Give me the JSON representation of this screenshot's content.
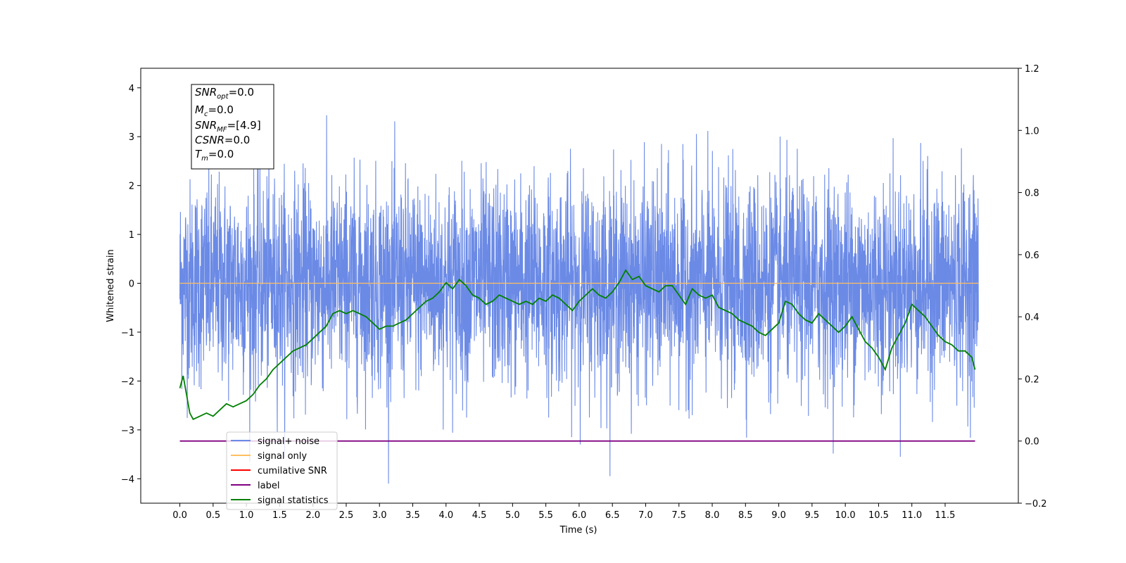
{
  "chart_data": {
    "type": "line",
    "xlabel": "Time (s)",
    "ylabel": "Whitened strain",
    "xlim": [
      -0.5875,
      12.6
    ],
    "ylim": [
      -4.5,
      4.4
    ],
    "y2lim": [
      -0.2,
      1.2
    ],
    "x_ticks": [
      0.0,
      0.5,
      1.0,
      1.5,
      2.0,
      2.5,
      3.0,
      3.5,
      4.0,
      4.5,
      5.0,
      5.5,
      6.0,
      6.5,
      7.0,
      7.5,
      8.0,
      8.5,
      9.0,
      9.5,
      10.0,
      10.5,
      11.0,
      11.5
    ],
    "x_tick_labels": [
      "0.0",
      "0.5",
      "1.0",
      "1.5",
      "2.0",
      "2.5",
      "3.0",
      "3.5",
      "4.0",
      "4.5",
      "5.0",
      "5.5",
      "6.0",
      "6.5",
      "7.0",
      "7.5",
      "8.0",
      "8.5",
      "9.0",
      "9.5",
      "10.0",
      "10.5",
      "11.0",
      "11.5"
    ],
    "y_ticks": [
      4,
      3,
      2,
      1,
      0,
      -1,
      -2,
      -3,
      -4
    ],
    "y_tick_labels": [
      "4",
      "3",
      "2",
      "1",
      "0",
      "−1",
      "−2",
      "−3",
      "−4"
    ],
    "y2_ticks": [
      1.2,
      1.0,
      0.8,
      0.6,
      0.4,
      0.2,
      0.0,
      -0.2
    ],
    "y2_tick_labels": [
      "1.2",
      "1.0",
      "0.8",
      "0.6",
      "0.4",
      "0.2",
      "0.0",
      "−0.2"
    ],
    "grid": false,
    "legend_position": "lower-left",
    "series": [
      {
        "name": "signal+ noise",
        "color": "#6b8ae6",
        "axis": "left",
        "x_range": [
          0.0,
          12.0
        ],
        "y_band": [
          -2.5,
          2.5
        ],
        "y_peak_range": [
          -4.1,
          4.0
        ]
      },
      {
        "name": "signal only",
        "color": "#ffbf60",
        "axis": "left",
        "x": [
          0.0,
          12.0
        ],
        "y": [
          0.0,
          0.0
        ]
      },
      {
        "name": "cumilative SNR",
        "color": "#ff0000",
        "axis": "right",
        "x": [],
        "y": []
      },
      {
        "name": "label",
        "color": "#800080",
        "axis": "right",
        "x": [
          0.0,
          11.95
        ],
        "y": [
          0.0,
          0.0
        ]
      },
      {
        "name": "signal statistics",
        "color": "#008000",
        "axis": "right",
        "x": [
          0.0,
          0.05,
          0.1,
          0.15,
          0.2,
          0.3,
          0.4,
          0.5,
          0.6,
          0.7,
          0.8,
          0.9,
          1.0,
          1.1,
          1.2,
          1.3,
          1.4,
          1.5,
          1.6,
          1.7,
          1.8,
          1.9,
          2.0,
          2.1,
          2.2,
          2.3,
          2.4,
          2.5,
          2.6,
          2.7,
          2.8,
          2.9,
          3.0,
          3.1,
          3.2,
          3.3,
          3.4,
          3.5,
          3.6,
          3.7,
          3.8,
          3.9,
          4.0,
          4.1,
          4.2,
          4.3,
          4.4,
          4.5,
          4.6,
          4.7,
          4.8,
          4.9,
          5.0,
          5.1,
          5.2,
          5.3,
          5.4,
          5.5,
          5.6,
          5.7,
          5.8,
          5.9,
          6.0,
          6.1,
          6.2,
          6.3,
          6.4,
          6.5,
          6.6,
          6.7,
          6.8,
          6.9,
          7.0,
          7.1,
          7.2,
          7.3,
          7.4,
          7.5,
          7.6,
          7.7,
          7.8,
          7.9,
          8.0,
          8.1,
          8.2,
          8.3,
          8.4,
          8.5,
          8.6,
          8.7,
          8.8,
          8.9,
          9.0,
          9.1,
          9.2,
          9.3,
          9.4,
          9.5,
          9.6,
          9.7,
          9.8,
          9.9,
          10.0,
          10.1,
          10.2,
          10.3,
          10.4,
          10.5,
          10.6,
          10.7,
          10.8,
          10.9,
          11.0,
          11.1,
          11.2,
          11.3,
          11.4,
          11.5,
          11.6,
          11.7,
          11.8,
          11.9,
          11.95
        ],
        "y": [
          0.17,
          0.21,
          0.15,
          0.09,
          0.07,
          0.08,
          0.09,
          0.08,
          0.1,
          0.12,
          0.11,
          0.12,
          0.13,
          0.15,
          0.18,
          0.2,
          0.23,
          0.25,
          0.27,
          0.29,
          0.3,
          0.31,
          0.33,
          0.35,
          0.37,
          0.41,
          0.42,
          0.41,
          0.42,
          0.41,
          0.4,
          0.38,
          0.36,
          0.37,
          0.37,
          0.38,
          0.39,
          0.41,
          0.43,
          0.45,
          0.46,
          0.48,
          0.51,
          0.49,
          0.52,
          0.5,
          0.47,
          0.46,
          0.44,
          0.45,
          0.47,
          0.46,
          0.45,
          0.44,
          0.45,
          0.44,
          0.46,
          0.45,
          0.47,
          0.46,
          0.44,
          0.42,
          0.45,
          0.47,
          0.49,
          0.47,
          0.46,
          0.48,
          0.51,
          0.55,
          0.52,
          0.53,
          0.5,
          0.49,
          0.48,
          0.5,
          0.5,
          0.47,
          0.44,
          0.49,
          0.47,
          0.46,
          0.47,
          0.43,
          0.42,
          0.41,
          0.39,
          0.38,
          0.37,
          0.35,
          0.34,
          0.36,
          0.38,
          0.45,
          0.44,
          0.41,
          0.39,
          0.38,
          0.41,
          0.39,
          0.37,
          0.35,
          0.37,
          0.4,
          0.36,
          0.32,
          0.3,
          0.27,
          0.23,
          0.3,
          0.34,
          0.38,
          0.44,
          0.42,
          0.4,
          0.37,
          0.34,
          0.32,
          0.31,
          0.29,
          0.29,
          0.27,
          0.23
        ]
      }
    ],
    "annotation": {
      "lines": [
        {
          "label": "SNR",
          "sub": "opt",
          "value": "=0.0"
        },
        {
          "label": "M",
          "sub": "c",
          "value": "=0.0"
        },
        {
          "label": "SNR",
          "sub": "MF",
          "value": "=[4.9]"
        },
        {
          "label": "CSNR",
          "sub": "",
          "value": "=0.0"
        },
        {
          "label": "T",
          "sub": "m",
          "value": "=0.0"
        }
      ]
    }
  }
}
